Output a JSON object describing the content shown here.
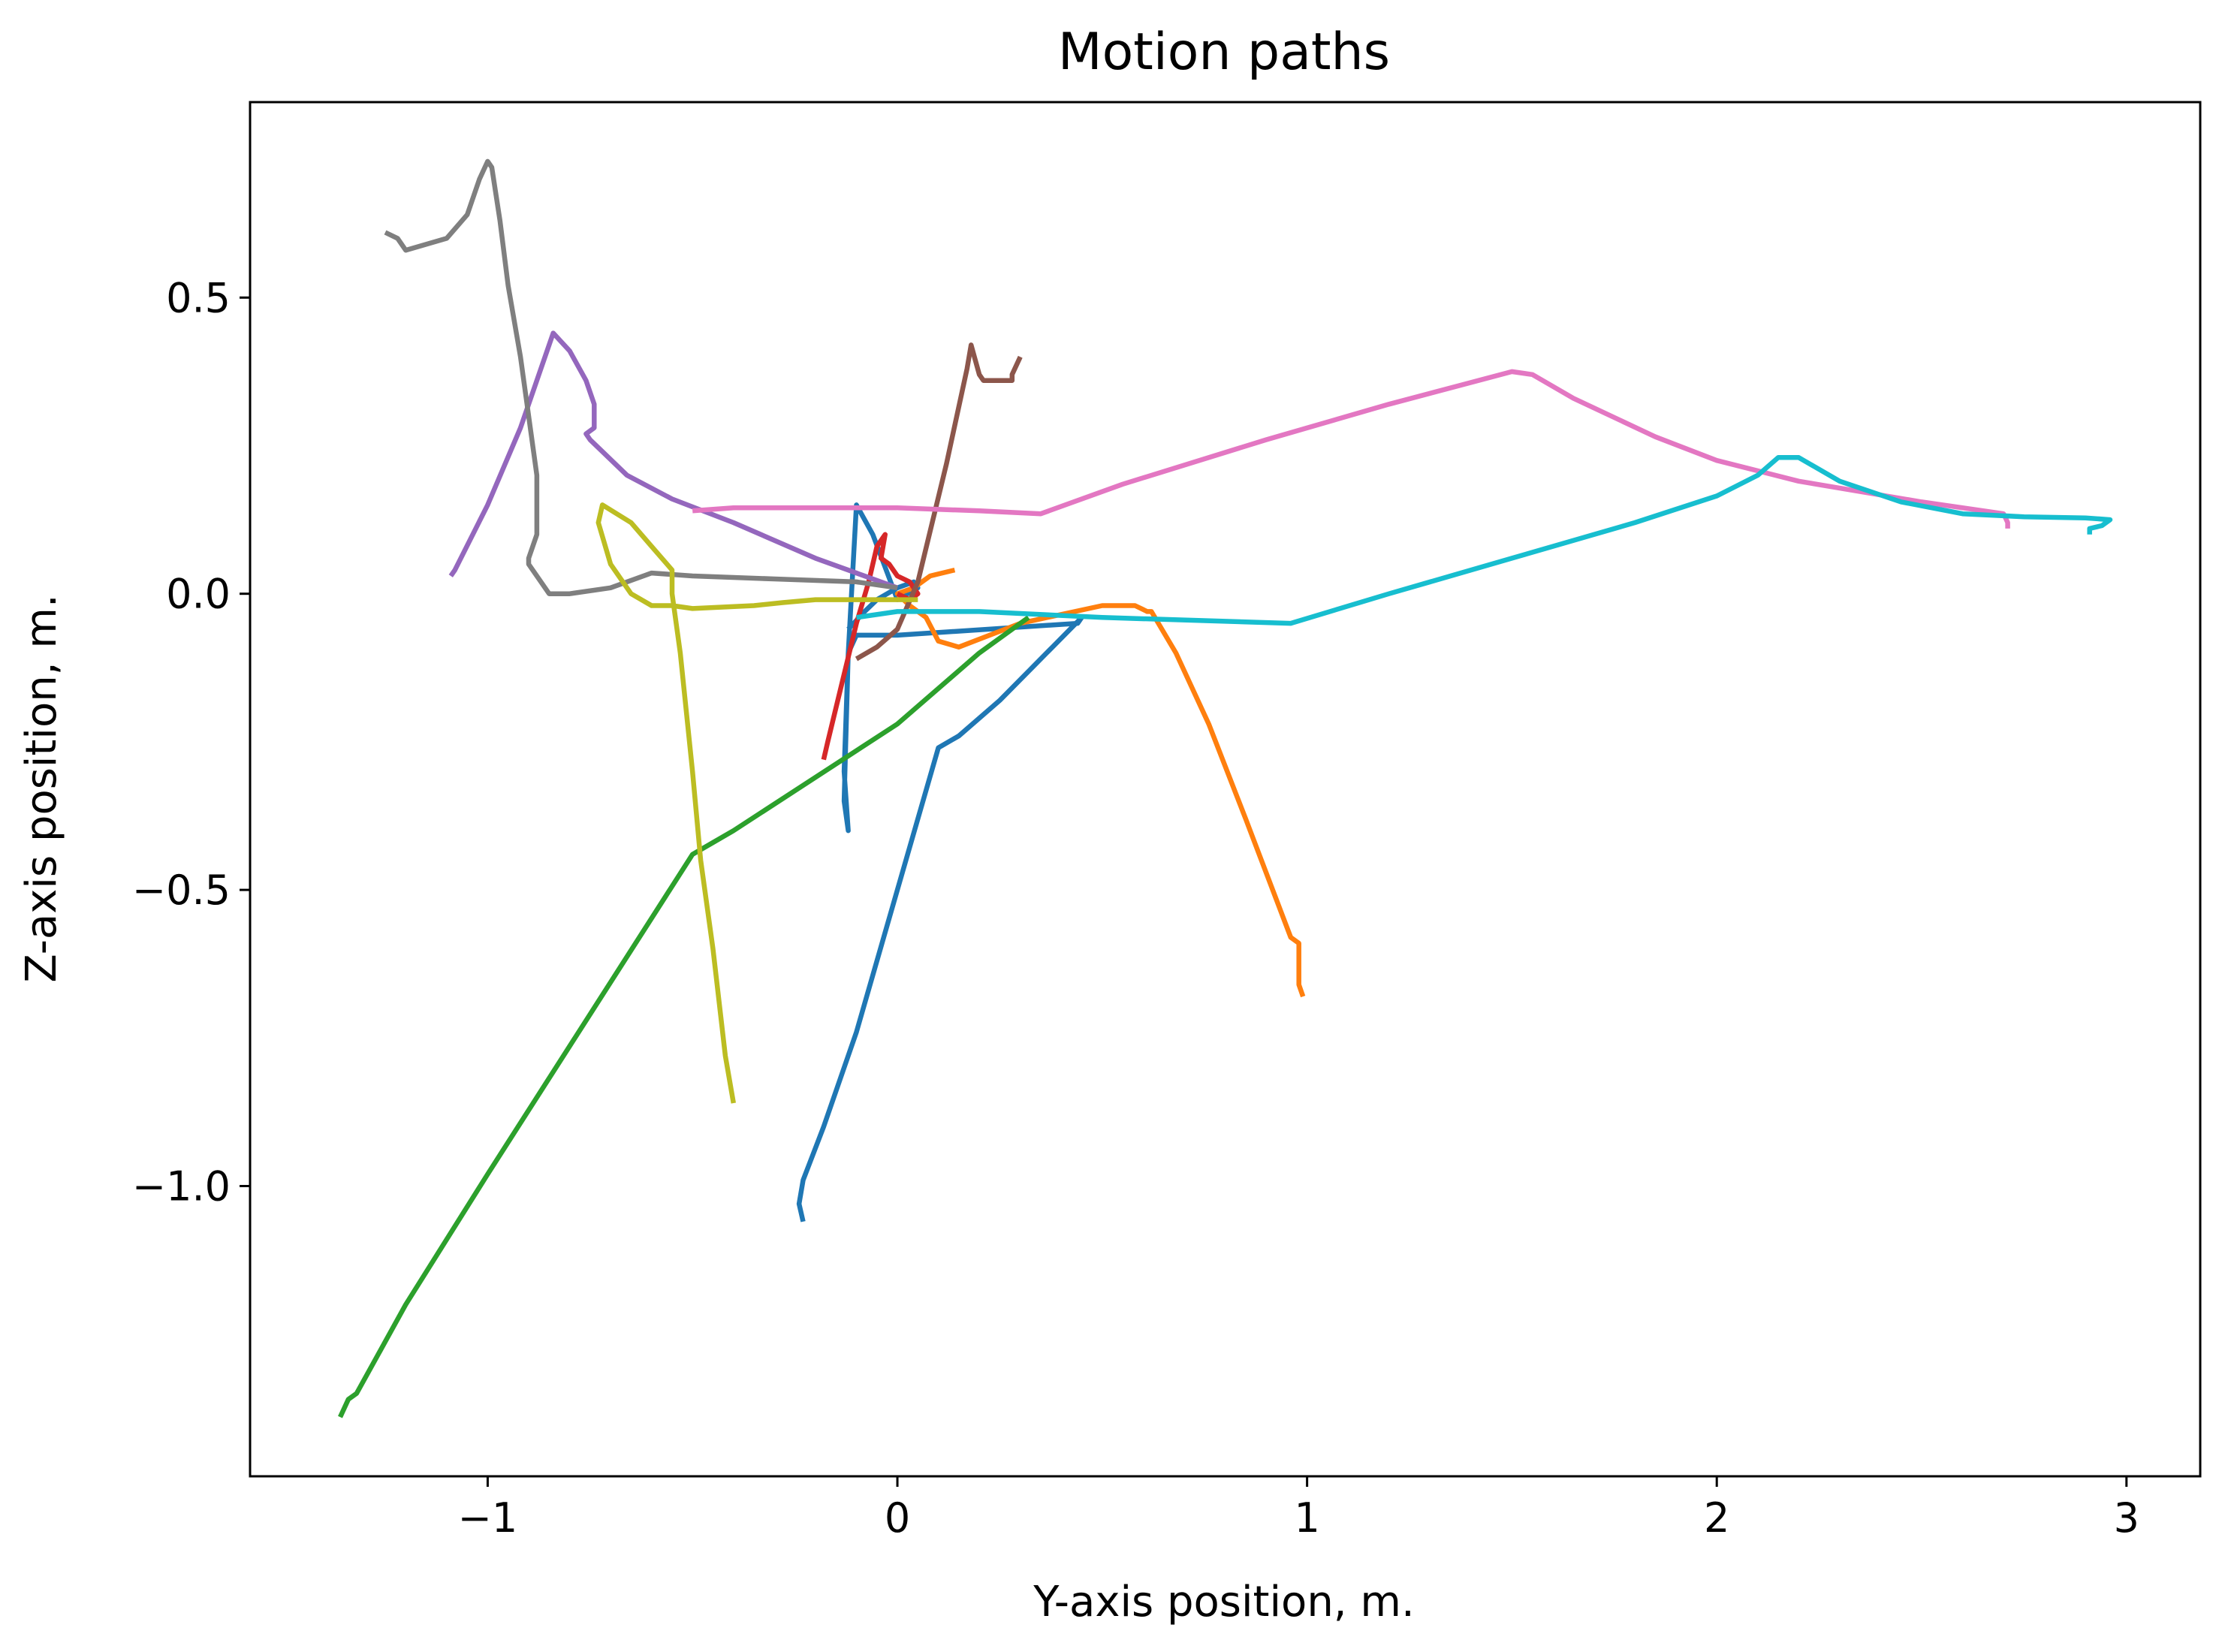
{
  "chart_data": {
    "type": "line",
    "title": "Motion paths",
    "xlabel": "Y-axis position, m.",
    "ylabel": "Z-axis position, m.",
    "xlim": [
      -1.58,
      3.18
    ],
    "ylim": [
      -1.49,
      0.83
    ],
    "xticks": [
      -1,
      0,
      1,
      2,
      3
    ],
    "xtick_labels": [
      "−1",
      "0",
      "1",
      "2",
      "3"
    ],
    "yticks": [
      -1.0,
      -0.5,
      0.0,
      0.5
    ],
    "ytick_labels": [
      "−1.0",
      "−0.5",
      "0.0",
      "0.5"
    ],
    "grid": false,
    "series": [
      {
        "color": "#1f77b4",
        "x": [
          -0.23,
          -0.24,
          -0.23,
          -0.18,
          -0.1,
          0.0,
          0.1,
          0.15,
          0.25,
          0.45,
          0.44,
          0.0,
          -0.1,
          -0.12,
          -0.13,
          -0.12,
          -0.13,
          -0.12,
          -0.1,
          -0.06,
          0.0,
          0.05,
          0.04,
          0.0,
          -0.05,
          -0.08,
          -0.12
        ],
        "y": [
          -1.06,
          -1.03,
          -0.99,
          -0.9,
          -0.74,
          -0.5,
          -0.26,
          -0.24,
          -0.18,
          -0.04,
          -0.05,
          -0.07,
          -0.07,
          -0.1,
          -0.35,
          -0.4,
          -0.3,
          -0.1,
          0.15,
          0.1,
          -0.01,
          0.01,
          0.02,
          0.01,
          -0.01,
          -0.03,
          -0.06
        ]
      },
      {
        "color": "#ff7f0e",
        "x": [
          0.99,
          0.98,
          0.98,
          0.96,
          0.85,
          0.76,
          0.68,
          0.62,
          0.61,
          0.58,
          0.5,
          0.3,
          0.15,
          0.1,
          0.07,
          0.03,
          0.0,
          0.04,
          0.08,
          0.14
        ],
        "y": [
          -0.68,
          -0.66,
          -0.59,
          -0.58,
          -0.38,
          -0.22,
          -0.1,
          -0.03,
          -0.03,
          -0.02,
          -0.02,
          -0.05,
          -0.09,
          -0.08,
          -0.04,
          -0.02,
          0.0,
          0.01,
          0.03,
          0.04
        ]
      },
      {
        "color": "#2ca02c",
        "x": [
          -1.36,
          -1.34,
          -1.32,
          -1.2,
          -1.0,
          -0.75,
          -0.5,
          -0.45,
          -0.4,
          0.0,
          0.2,
          0.3,
          0.32
        ],
        "y": [
          -1.39,
          -1.36,
          -1.35,
          -1.2,
          -0.98,
          -0.71,
          -0.44,
          -0.42,
          -0.4,
          -0.22,
          -0.1,
          -0.05,
          -0.04
        ]
      },
      {
        "color": "#d62728",
        "x": [
          -0.18,
          -0.17,
          -0.1,
          -0.07,
          -0.05,
          -0.03,
          -0.04,
          -0.02,
          0.0,
          0.03,
          0.05,
          0.03,
          0.0
        ],
        "y": [
          -0.28,
          -0.25,
          -0.05,
          0.02,
          0.08,
          0.1,
          0.06,
          0.05,
          0.03,
          0.02,
          0.0,
          -0.01,
          0.0
        ]
      },
      {
        "color": "#9467bd",
        "x": [
          -1.09,
          -1.08,
          -1.0,
          -0.92,
          -0.88,
          -0.84,
          -0.8,
          -0.76,
          -0.74,
          -0.74,
          -0.76,
          -0.75,
          -0.72,
          -0.66,
          -0.55,
          -0.4,
          -0.2,
          0.0
        ],
        "y": [
          0.03,
          0.04,
          0.15,
          0.28,
          0.36,
          0.44,
          0.41,
          0.36,
          0.32,
          0.28,
          0.27,
          0.26,
          0.24,
          0.2,
          0.16,
          0.12,
          0.06,
          0.01
        ]
      },
      {
        "color": "#8c564b",
        "x": [
          -0.1,
          -0.05,
          0.0,
          0.05,
          0.12,
          0.17,
          0.18,
          0.2,
          0.21,
          0.25,
          0.28,
          0.28,
          0.3
        ],
        "y": [
          -0.11,
          -0.09,
          -0.06,
          0.02,
          0.22,
          0.38,
          0.42,
          0.37,
          0.36,
          0.36,
          0.36,
          0.37,
          0.4
        ]
      },
      {
        "color": "#e377c2",
        "x": [
          -0.5,
          -0.4,
          -0.2,
          0.0,
          0.2,
          0.35,
          0.55,
          0.9,
          1.2,
          1.5,
          1.55,
          1.65,
          1.85,
          2.0,
          2.2,
          2.5,
          2.7,
          2.71,
          2.71
        ],
        "y": [
          0.14,
          0.145,
          0.145,
          0.145,
          0.14,
          0.135,
          0.185,
          0.26,
          0.32,
          0.375,
          0.37,
          0.33,
          0.265,
          0.225,
          0.19,
          0.155,
          0.135,
          0.12,
          0.11
        ]
      },
      {
        "color": "#7f7f7f",
        "x": [
          -1.25,
          -1.22,
          -1.2,
          -1.1,
          -1.05,
          -1.02,
          -1.0,
          -0.99,
          -0.97,
          -0.95,
          -0.92,
          -0.9,
          -0.88,
          -0.88,
          -0.9,
          -0.9,
          -0.85,
          -0.8,
          -0.7,
          -0.6,
          -0.5,
          -0.3,
          -0.1,
          0.0
        ],
        "y": [
          0.61,
          0.6,
          0.58,
          0.6,
          0.64,
          0.7,
          0.73,
          0.72,
          0.63,
          0.52,
          0.4,
          0.3,
          0.2,
          0.1,
          0.06,
          0.05,
          0.0,
          0.0,
          0.01,
          0.035,
          0.03,
          0.025,
          0.02,
          0.01
        ]
      },
      {
        "color": "#bcbd22",
        "x": [
          -0.4,
          -0.42,
          -0.45,
          -0.48,
          -0.5,
          -0.53,
          -0.55,
          -0.55,
          -0.6,
          -0.65,
          -0.72,
          -0.73,
          -0.7,
          -0.65,
          -0.6,
          -0.55,
          -0.5,
          -0.35,
          -0.28,
          -0.2,
          -0.1,
          0.0,
          0.05
        ],
        "y": [
          -0.86,
          -0.78,
          -0.6,
          -0.45,
          -0.3,
          -0.1,
          0.0,
          0.04,
          0.08,
          0.12,
          0.15,
          0.12,
          0.05,
          0.0,
          -0.02,
          -0.02,
          -0.025,
          -0.02,
          -0.015,
          -0.01,
          -0.01,
          -0.01,
          -0.01
        ]
      },
      {
        "color": "#17becf",
        "x": [
          -0.1,
          0.0,
          0.2,
          0.5,
          0.96,
          1.2,
          1.5,
          1.8,
          2.0,
          2.1,
          2.15,
          2.2,
          2.3,
          2.45,
          2.6,
          2.75,
          2.9,
          2.96,
          2.94,
          2.91,
          2.91
        ],
        "y": [
          -0.04,
          -0.03,
          -0.03,
          -0.04,
          -0.05,
          0.0,
          0.06,
          0.12,
          0.165,
          0.2,
          0.23,
          0.23,
          0.19,
          0.155,
          0.135,
          0.13,
          0.128,
          0.125,
          0.115,
          0.11,
          0.1
        ]
      }
    ]
  }
}
